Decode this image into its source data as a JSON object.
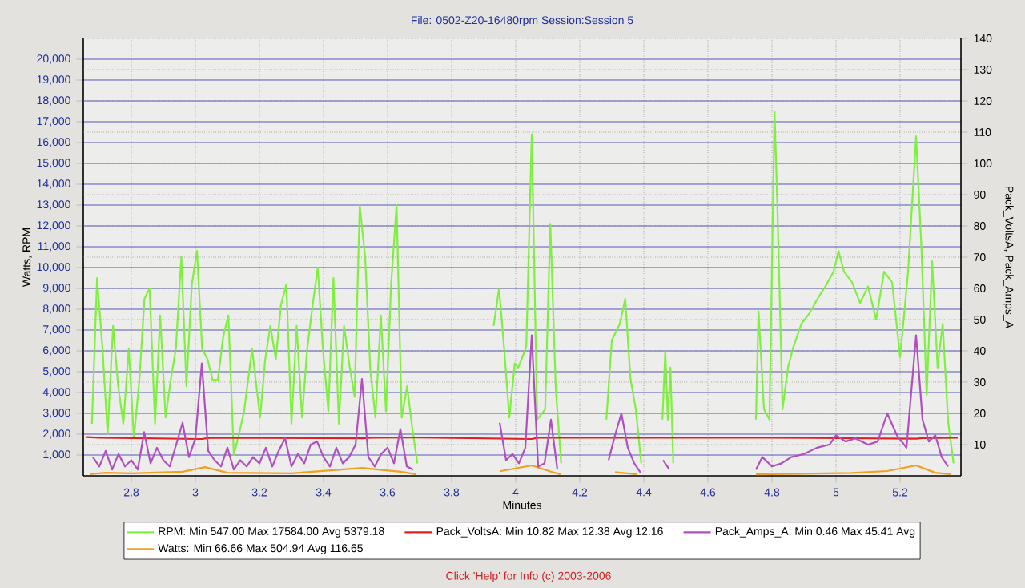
{
  "chart_data": {
    "type": "line",
    "title": "File: 0502-Z20-16480rpm   Session:Session 5",
    "xlabel": "Minutes",
    "ylabel": "Watts, RPM",
    "y2label": "Pack_VoltsA, Pack_Amps_A",
    "xlim": [
      2.65,
      5.39
    ],
    "xticks": [
      2.8,
      3,
      3.2,
      3.4,
      3.6,
      3.8,
      4,
      4.2,
      4.4,
      4.6,
      4.8,
      5,
      5.2
    ],
    "ylim": [
      0,
      21000
    ],
    "yticks": [
      {
        "value": 1000,
        "label": "1,000"
      },
      {
        "value": 2000,
        "label": "2,000"
      },
      {
        "value": 3000,
        "label": "3,000"
      },
      {
        "value": 4000,
        "label": "4,000"
      },
      {
        "value": 5000,
        "label": "5,000"
      },
      {
        "value": 6000,
        "label": "6,000"
      },
      {
        "value": 7000,
        "label": "7,000"
      },
      {
        "value": 8000,
        "label": "8,000"
      },
      {
        "value": 9000,
        "label": "9,000"
      },
      {
        "value": 10000,
        "label": "10,000"
      },
      {
        "value": 11000,
        "label": "11,000"
      },
      {
        "value": 12000,
        "label": "12,000"
      },
      {
        "value": 13000,
        "label": "13,000"
      },
      {
        "value": 14000,
        "label": "14,000"
      },
      {
        "value": 15000,
        "label": "15,000"
      },
      {
        "value": 16000,
        "label": "16,000"
      },
      {
        "value": 17000,
        "label": "17,000"
      },
      {
        "value": 18000,
        "label": "18,000"
      },
      {
        "value": 19000,
        "label": "19,000"
      },
      {
        "value": 20000,
        "label": "20,000"
      }
    ],
    "y2lim": [
      0,
      140
    ],
    "y2ticks": [
      10,
      20,
      30,
      40,
      50,
      60,
      70,
      80,
      90,
      100,
      110,
      120,
      130,
      140
    ],
    "grid": true,
    "legend": "bottom",
    "marker": "none",
    "line_style": "solid",
    "annotations": [
      "Click 'Help' for Info  (c) 2003-2006"
    ],
    "series": [
      {
        "name": "RPM:  Min 547.00 Max 17584.00 Avg 5379.18",
        "color": "#80f040",
        "x": [
          2.677,
          2.693,
          2.71,
          2.726,
          2.743,
          2.759,
          2.775,
          2.792,
          2.808,
          2.825,
          2.841,
          2.857,
          2.874,
          2.89,
          2.907,
          2.923,
          2.939,
          2.956,
          2.972,
          2.989,
          3.005,
          3.021,
          3.038,
          3.054,
          3.07,
          3.087,
          3.103,
          3.12,
          3.136,
          3.152,
          3.177,
          3.202,
          3.218,
          3.234,
          3.251,
          3.267,
          3.284,
          3.3,
          3.316,
          3.333,
          3.349,
          3.366,
          3.382,
          3.398,
          3.415,
          3.431,
          3.448,
          3.464,
          3.48,
          3.497,
          3.513,
          3.53,
          3.546,
          3.562,
          3.579,
          3.595,
          3.611,
          3.628,
          3.644,
          3.661,
          3.677,
          3.693,
          3.8,
          3.931,
          3.948,
          3.964,
          3.98,
          3.997,
          4.008,
          4.033,
          4.05,
          4.067,
          4.092,
          4.108,
          4.125,
          4.142,
          4.2,
          4.283,
          4.3,
          4.325,
          4.342,
          4.358,
          4.375,
          4.392,
          4.42,
          4.458,
          4.467,
          4.475,
          4.483,
          4.492,
          4.6,
          4.75,
          4.758,
          4.775,
          4.792,
          4.808,
          4.817,
          4.833,
          4.85,
          4.867,
          4.892,
          4.917,
          4.942,
          4.967,
          4.992,
          5.008,
          5.025,
          5.05,
          5.075,
          5.1,
          5.125,
          5.15,
          5.175,
          5.2,
          5.225,
          5.25,
          5.267,
          5.283,
          5.3,
          5.317,
          5.333,
          5.35,
          5.367
        ],
        "values": [
          2500,
          9500,
          6100,
          2000,
          7200,
          4300,
          2500,
          6100,
          1800,
          4600,
          8500,
          9000,
          2500,
          7700,
          2800,
          4600,
          6100,
          10500,
          4300,
          9200,
          10800,
          6100,
          5600,
          4600,
          4600,
          6700,
          7700,
          1000,
          2000,
          3100,
          6100,
          2800,
          5600,
          7200,
          5600,
          8200,
          9200,
          2500,
          7200,
          2800,
          6100,
          8200,
          10000,
          6100,
          3100,
          9500,
          2500,
          7200,
          5400,
          3800,
          13000,
          10500,
          5100,
          2800,
          7700,
          3100,
          9200,
          13000,
          2800,
          4300,
          2300,
          600,
          null,
          7200,
          9000,
          6100,
          2800,
          5400,
          5200,
          6200,
          16400,
          2700,
          3200,
          12100,
          4200,
          600,
          null,
          2700,
          6500,
          7300,
          8500,
          4700,
          3200,
          600,
          null,
          2700,
          6000,
          2700,
          5200,
          600,
          null,
          2700,
          7900,
          3200,
          2700,
          17500,
          12900,
          3200,
          5200,
          6200,
          7300,
          7800,
          8500,
          9100,
          9800,
          10800,
          9800,
          9300,
          8300,
          9100,
          7500,
          9800,
          9300,
          5700,
          9800,
          16300,
          10800,
          3900,
          10300,
          5200,
          7300,
          2600,
          600
        ]
      },
      {
        "name": "Pack_VoltsA:  Min 10.82 Max 12.38 Avg 12.16",
        "color": "#e02020",
        "axis": "y2",
        "x": [
          2.66,
          2.7,
          3.02,
          3.05,
          3.52,
          3.55,
          3.7,
          4.05,
          4.07,
          4.8,
          5.25,
          5.27,
          5.38
        ],
        "values": [
          12.4,
          12.2,
          11.8,
          12.2,
          12,
          12.2,
          12.3,
          11.8,
          12.2,
          12.2,
          11.9,
          12.1,
          12.2
        ]
      },
      {
        "name": "Pack_Amps_A:  Min 0.46 Max 45.41 Avg",
        "color": "#b050c0",
        "axis": "y2",
        "x": [
          2.68,
          2.7,
          2.72,
          2.74,
          2.76,
          2.78,
          2.8,
          2.82,
          2.84,
          2.86,
          2.88,
          2.9,
          2.92,
          2.94,
          2.96,
          2.98,
          3,
          3.02,
          3.04,
          3.06,
          3.08,
          3.1,
          3.12,
          3.14,
          3.16,
          3.18,
          3.2,
          3.22,
          3.24,
          3.26,
          3.28,
          3.3,
          3.32,
          3.34,
          3.36,
          3.38,
          3.4,
          3.42,
          3.44,
          3.46,
          3.48,
          3.5,
          3.52,
          3.54,
          3.56,
          3.58,
          3.6,
          3.62,
          3.64,
          3.66,
          3.68,
          3.8,
          3.95,
          3.97,
          3.99,
          4.01,
          4.03,
          4.05,
          4.07,
          4.09,
          4.11,
          4.13,
          4.2,
          4.29,
          4.31,
          4.33,
          4.35,
          4.37,
          4.39,
          4.42,
          4.46,
          4.48,
          4.6,
          4.75,
          4.77,
          4.8,
          4.83,
          4.86,
          4.9,
          4.94,
          4.98,
          5,
          5.03,
          5.06,
          5.1,
          5.13,
          5.16,
          5.19,
          5.22,
          5.25,
          5.27,
          5.29,
          5.31,
          5.33,
          5.35
        ],
        "values": [
          6,
          3,
          8,
          2,
          7,
          3,
          5,
          2,
          14,
          4,
          9,
          5,
          3,
          10,
          17,
          6,
          12,
          36,
          8,
          5,
          3,
          9,
          2,
          5,
          3,
          6,
          4,
          9,
          3,
          8,
          12,
          3,
          7,
          4,
          10,
          11,
          6,
          3,
          9,
          4,
          6,
          10,
          31,
          6,
          3,
          7,
          9,
          4,
          15,
          3,
          2,
          null,
          17,
          5,
          7,
          4,
          9,
          45,
          3,
          4,
          18,
          2,
          null,
          5,
          13,
          20,
          9,
          4,
          1,
          null,
          5,
          2,
          null,
          2,
          6,
          3,
          4,
          6,
          7,
          9,
          10,
          13,
          11,
          12,
          10,
          11,
          20,
          13,
          9,
          45,
          18,
          11,
          13,
          6,
          3
        ]
      },
      {
        "name": "Watts:  Min 66.66 Max 504.94 Avg 116.65",
        "color": "#f0a020",
        "x": [
          2.67,
          2.72,
          2.8,
          2.96,
          3.03,
          3.1,
          3.3,
          3.52,
          3.64,
          3.69,
          3.8,
          3.95,
          4.05,
          4.11,
          4.14,
          4.2,
          4.31,
          4.38,
          4.42,
          4.75,
          4.9,
          5.05,
          5.16,
          5.25,
          5.31,
          5.36
        ],
        "values": [
          80,
          150,
          120,
          200,
          420,
          150,
          120,
          380,
          200,
          70,
          null,
          220,
          500,
          200,
          70,
          null,
          180,
          70,
          null,
          70,
          100,
          140,
          230,
          500,
          150,
          70
        ]
      }
    ]
  }
}
